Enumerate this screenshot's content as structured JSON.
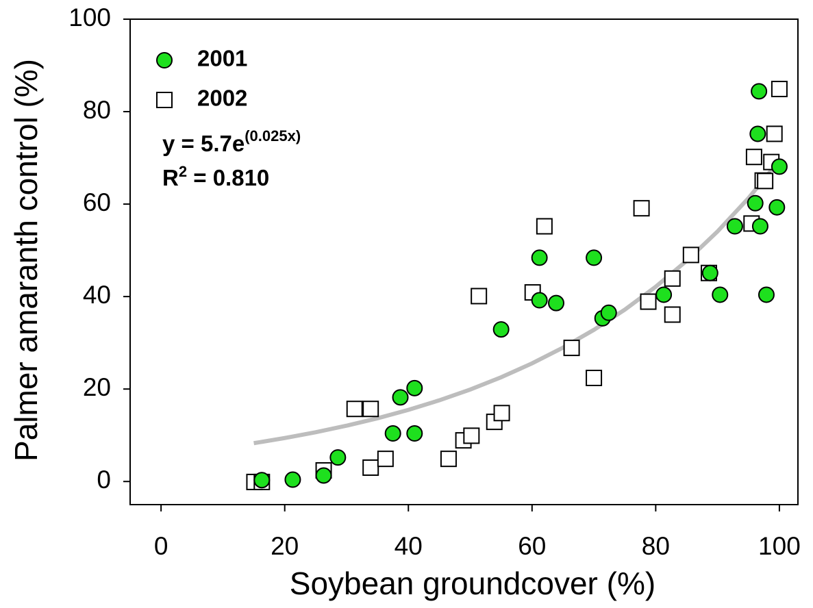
{
  "chart_data": {
    "type": "scatter",
    "xlabel": "Soybean groundcover (%)",
    "ylabel": "Palmer amaranth control (%)",
    "xlim": [
      -5,
      103
    ],
    "ylim": [
      -5,
      100
    ],
    "xticks": [
      0,
      20,
      40,
      60,
      80,
      100
    ],
    "yticks": [
      0,
      20,
      40,
      60,
      80,
      100
    ],
    "legend": "upper left",
    "series": [
      {
        "name": "2001",
        "marker": "circle",
        "color": "#1ee01e",
        "x": [
          16.3,
          21.3,
          26.3,
          28.6,
          37.5,
          38.7,
          41,
          41,
          55,
          61.2,
          61.2,
          63.9,
          70,
          71.4,
          72.4,
          81.3,
          88.8,
          90.4,
          92.8,
          96.1,
          96.5,
          96.7,
          96.9,
          97.9,
          99.6,
          100
        ],
        "values": [
          0.3,
          0.4,
          1.3,
          5.2,
          10.4,
          18.2,
          20.2,
          10.4,
          32.9,
          48.4,
          39.2,
          38.6,
          48.4,
          35.3,
          36.5,
          40.4,
          45.1,
          40.4,
          55.2,
          60.2,
          75.2,
          84.4,
          55.2,
          40.4,
          59.3,
          68.1
        ]
      },
      {
        "name": "2002",
        "marker": "square",
        "color": "#ffffff",
        "x": [
          15.1,
          16.3,
          26.3,
          31.3,
          33.9,
          33.9,
          36.3,
          46.5,
          48.9,
          50.2,
          51.4,
          53.9,
          55.1,
          60.1,
          62,
          66.4,
          70,
          77.7,
          78.8,
          82.7,
          82.7,
          85.7,
          88.6,
          95.5,
          95.9,
          97.3,
          97.7,
          98.7,
          99.2,
          100
        ],
        "values": [
          -0.1,
          -0.1,
          2.4,
          15.7,
          15.7,
          3,
          4.9,
          4.9,
          8.9,
          9.9,
          40.1,
          12.9,
          14.8,
          40.9,
          55.2,
          28.9,
          22.4,
          59.1,
          38.9,
          43.9,
          36.1,
          49,
          45.1,
          55.8,
          70.2,
          65.1,
          65,
          69.1,
          75.2,
          84.9
        ]
      }
    ],
    "fit": {
      "color": "#bdbdbd",
      "x": [
        15,
        20,
        25,
        30,
        35,
        40,
        45,
        50,
        55,
        60,
        65,
        70,
        75,
        80,
        85,
        90,
        95,
        100
      ],
      "values": [
        8.29,
        9.4,
        10.65,
        12.07,
        13.67,
        15.49,
        17.56,
        19.89,
        22.54,
        25.55,
        28.95,
        32.8,
        37.17,
        42.12,
        47.73,
        54.08,
        61.28,
        69.44
      ]
    },
    "equation": {
      "base": "y = 5.7e",
      "exponent": "(0.025x)"
    },
    "r_squared": {
      "base": "R",
      "exponent": "2",
      "rest": " = 0.810"
    }
  }
}
